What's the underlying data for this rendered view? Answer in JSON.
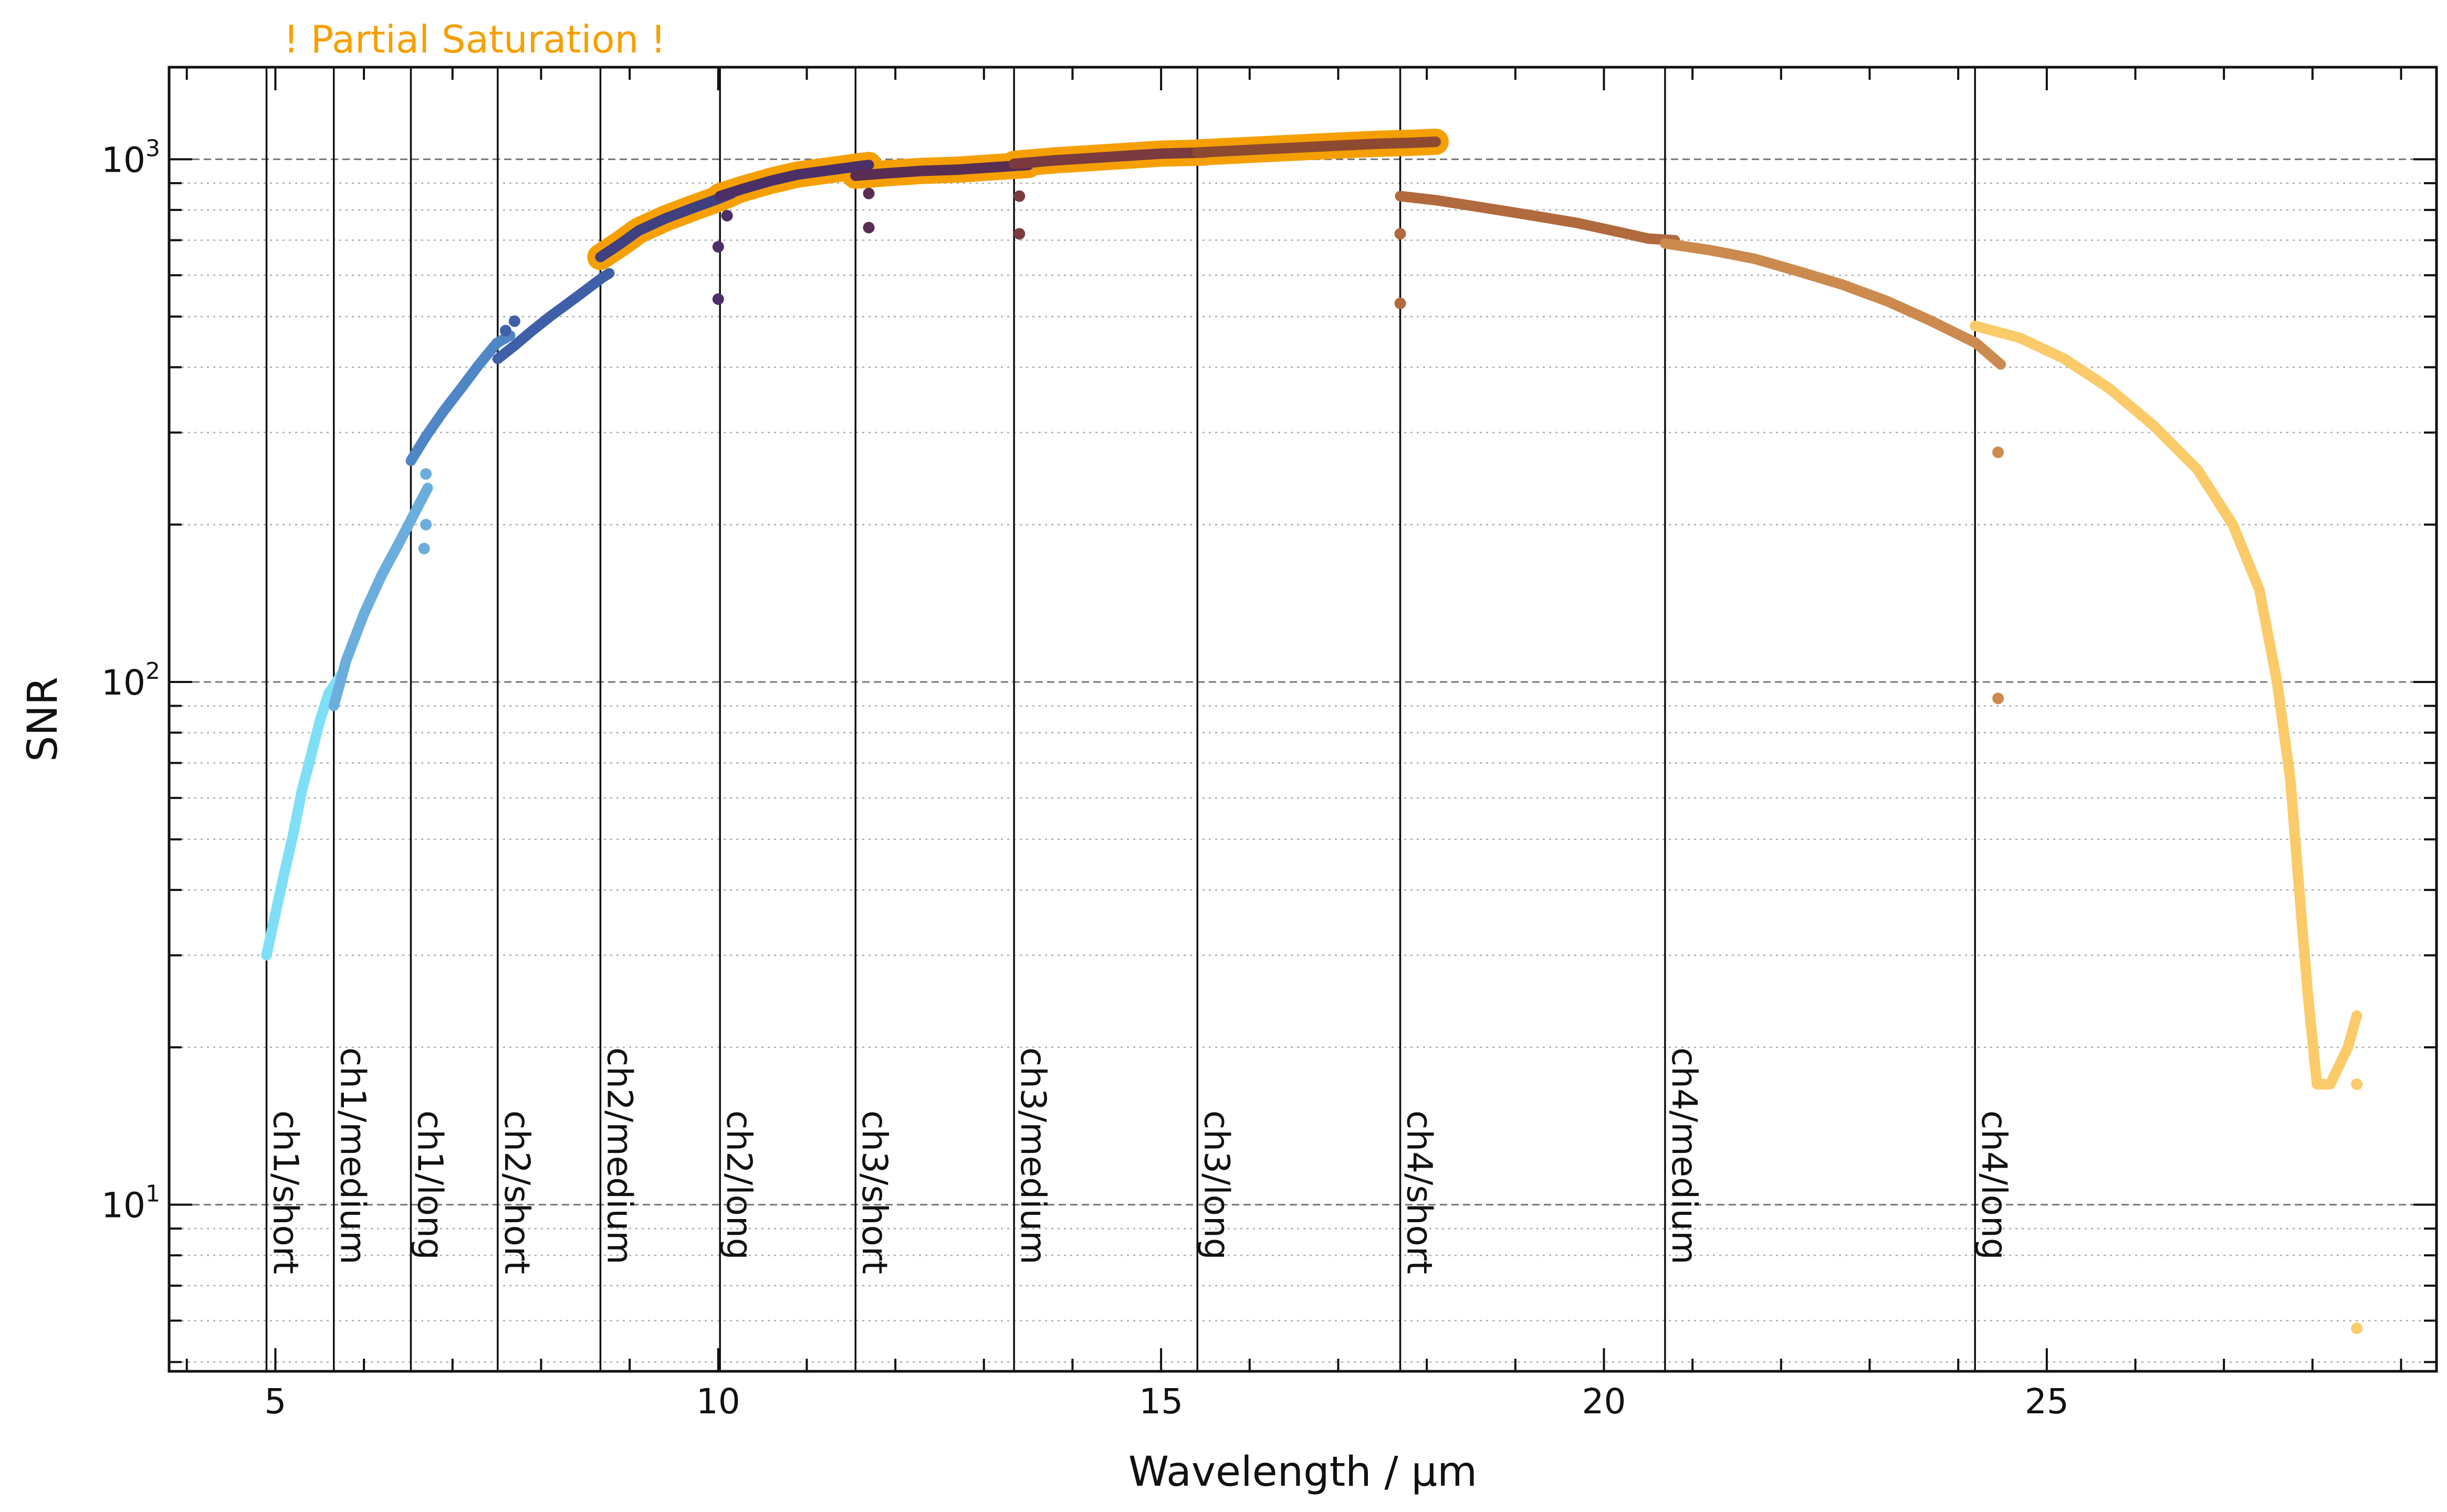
{
  "chart_data": {
    "type": "scatter",
    "title": "",
    "annotation": "! Partial Saturation !",
    "xlabel": "Wavelength / μm",
    "ylabel": "SNR",
    "xlim": [
      3.8,
      29.4
    ],
    "ylim": [
      4.8,
      1500
    ],
    "yscale": "log",
    "x_ticks": [
      {
        "value": 5,
        "label": "5"
      },
      {
        "value": 10,
        "label": "10"
      },
      {
        "value": 15,
        "label": "15"
      },
      {
        "value": 20,
        "label": "20"
      },
      {
        "value": 25,
        "label": "25"
      }
    ],
    "y_ticks": [
      {
        "value": 10,
        "base": "10",
        "exp": "1"
      },
      {
        "value": 100,
        "base": "10",
        "exp": "2"
      },
      {
        "value": 1000,
        "base": "10",
        "exp": "3"
      }
    ],
    "grid": "horizontal, dashed at decades and dotted at minor ticks",
    "saturation_color": "#f5a000",
    "bands": [
      {
        "x": 4.9,
        "label": "ch1/short",
        "color": "#7fdff6",
        "points": [
          [
            4.9,
            30
          ],
          [
            5.0,
            36
          ],
          [
            5.1,
            43
          ],
          [
            5.2,
            51
          ],
          [
            5.3,
            62
          ],
          [
            5.4,
            72
          ],
          [
            5.5,
            84
          ],
          [
            5.6,
            95
          ],
          [
            5.74,
            103
          ]
        ],
        "saturated": false,
        "outliers": []
      },
      {
        "x": 5.66,
        "label": "ch1/medium",
        "color": "#6baedd",
        "points": [
          [
            5.66,
            90
          ],
          [
            5.8,
            110
          ],
          [
            6.0,
            135
          ],
          [
            6.2,
            160
          ],
          [
            6.4,
            185
          ],
          [
            6.6,
            215
          ],
          [
            6.72,
            235
          ]
        ],
        "saturated": false,
        "outliers": [
          [
            6.68,
            180
          ],
          [
            6.7,
            200
          ],
          [
            6.7,
            250
          ]
        ]
      },
      {
        "x": 6.53,
        "label": "ch1/long",
        "color": "#4f86c6",
        "points": [
          [
            6.53,
            265
          ],
          [
            6.7,
            295
          ],
          [
            6.9,
            330
          ],
          [
            7.1,
            365
          ],
          [
            7.3,
            405
          ],
          [
            7.5,
            445
          ],
          [
            7.65,
            460
          ]
        ],
        "saturated": false,
        "outliers": []
      },
      {
        "x": 7.51,
        "label": "ch2/short",
        "color": "#3f5fa8",
        "points": [
          [
            7.51,
            415
          ],
          [
            7.7,
            440
          ],
          [
            7.9,
            470
          ],
          [
            8.1,
            500
          ],
          [
            8.4,
            545
          ],
          [
            8.7,
            595
          ],
          [
            8.77,
            605
          ]
        ],
        "saturated": false,
        "outliers": [
          [
            7.6,
            470
          ],
          [
            7.7,
            490
          ]
        ]
      },
      {
        "x": 8.67,
        "label": "ch2/medium",
        "color": "#403f7f",
        "points": [
          [
            8.67,
            650
          ],
          [
            8.9,
            690
          ],
          [
            9.1,
            730
          ],
          [
            9.4,
            770
          ],
          [
            9.7,
            805
          ],
          [
            10.0,
            840
          ],
          [
            10.15,
            860
          ]
        ],
        "saturated": true,
        "outliers": []
      },
      {
        "x": 10.02,
        "label": "ch2/long",
        "color": "#4b2f66",
        "points": [
          [
            10.02,
            850
          ],
          [
            10.3,
            880
          ],
          [
            10.6,
            910
          ],
          [
            10.9,
            935
          ],
          [
            11.2,
            950
          ],
          [
            11.5,
            965
          ],
          [
            11.7,
            975
          ]
        ],
        "saturated": true,
        "outliers": [
          [
            10.0,
            540
          ],
          [
            10.0,
            680
          ],
          [
            10.1,
            780
          ]
        ]
      },
      {
        "x": 11.55,
        "label": "ch3/short",
        "color": "#5a2d52",
        "points": [
          [
            11.55,
            930
          ],
          [
            11.9,
            940
          ],
          [
            12.3,
            950
          ],
          [
            12.7,
            955
          ],
          [
            13.1,
            965
          ],
          [
            13.5,
            975
          ]
        ],
        "saturated": true,
        "outliers": [
          [
            11.7,
            740
          ],
          [
            11.7,
            860
          ]
        ]
      },
      {
        "x": 13.34,
        "label": "ch3/medium",
        "color": "#7a3a3e",
        "points": [
          [
            13.34,
            980
          ],
          [
            13.8,
            995
          ],
          [
            14.2,
            1005
          ],
          [
            14.6,
            1015
          ],
          [
            15.0,
            1025
          ],
          [
            15.5,
            1030
          ]
        ],
        "saturated": true,
        "outliers": [
          [
            13.4,
            720
          ],
          [
            13.4,
            850
          ]
        ]
      },
      {
        "x": 15.41,
        "label": "ch3/long",
        "color": "#8e4a30",
        "points": [
          [
            15.41,
            1030
          ],
          [
            15.9,
            1040
          ],
          [
            16.4,
            1050
          ],
          [
            16.9,
            1060
          ],
          [
            17.4,
            1070
          ],
          [
            17.8,
            1075
          ],
          [
            18.1,
            1080
          ]
        ],
        "saturated": true,
        "outliers": []
      },
      {
        "x": 17.7,
        "label": "ch4/short",
        "color": "#b06a3e",
        "points": [
          [
            17.7,
            850
          ],
          [
            18.1,
            835
          ],
          [
            18.5,
            815
          ],
          [
            18.9,
            795
          ],
          [
            19.3,
            775
          ],
          [
            19.7,
            755
          ],
          [
            20.1,
            730
          ],
          [
            20.5,
            705
          ],
          [
            20.8,
            700
          ]
        ],
        "saturated": false,
        "outliers": [
          [
            17.7,
            530
          ],
          [
            17.7,
            720
          ]
        ]
      },
      {
        "x": 20.69,
        "label": "ch4/medium",
        "color": "#cc8a4e",
        "points": [
          [
            20.69,
            690
          ],
          [
            21.2,
            670
          ],
          [
            21.7,
            645
          ],
          [
            22.2,
            610
          ],
          [
            22.7,
            575
          ],
          [
            23.2,
            535
          ],
          [
            23.7,
            490
          ],
          [
            24.2,
            445
          ],
          [
            24.48,
            405
          ]
        ],
        "saturated": false,
        "outliers": [
          [
            24.45,
            275
          ],
          [
            24.45,
            93
          ]
        ]
      },
      {
        "x": 24.19,
        "label": "ch4/long",
        "color": "#fbcb69",
        "points": [
          [
            24.19,
            480
          ],
          [
            24.7,
            455
          ],
          [
            25.2,
            415
          ],
          [
            25.7,
            365
          ],
          [
            26.2,
            310
          ],
          [
            26.7,
            255
          ],
          [
            27.1,
            200
          ],
          [
            27.4,
            150
          ],
          [
            27.6,
            100
          ],
          [
            27.75,
            65
          ],
          [
            27.85,
            40
          ],
          [
            27.95,
            25
          ],
          [
            28.05,
            17
          ],
          [
            28.2,
            17
          ],
          [
            28.4,
            20
          ],
          [
            28.5,
            23
          ]
        ],
        "saturated": false,
        "outliers": [
          [
            28.5,
            17
          ],
          [
            28.5,
            5.8
          ]
        ]
      }
    ]
  }
}
